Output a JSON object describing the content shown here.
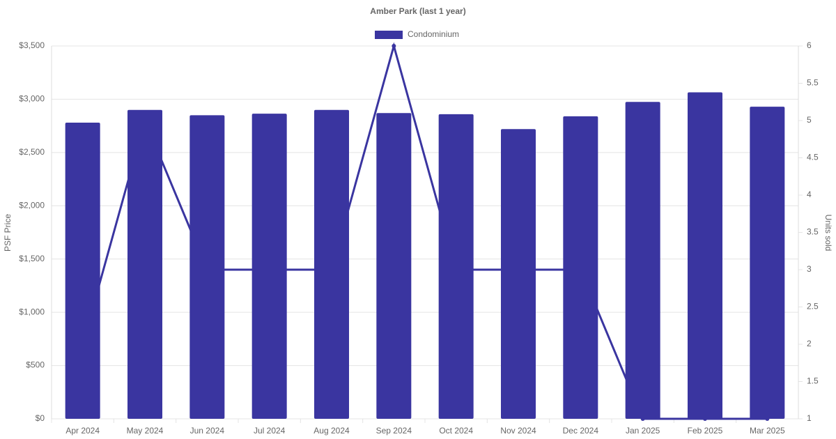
{
  "chart_data": {
    "type": "bar-line",
    "title": "Amber Park (last 1 year)",
    "categories": [
      "Apr 2024",
      "May 2024",
      "Jun 2024",
      "Jul 2024",
      "Aug 2024",
      "Sep 2024",
      "Oct 2024",
      "Nov 2024",
      "Dec 2024",
      "Jan 2025",
      "Feb 2025",
      "Mar 2025"
    ],
    "series": [
      {
        "name": "Condominium",
        "type": "bar",
        "color": "#3a35a0",
        "values": [
          2780,
          2900,
          2850,
          2865,
          2900,
          2870,
          2860,
          2720,
          2840,
          2975,
          3065,
          2930
        ]
      },
      {
        "type": "line",
        "axis": "y2",
        "color": "#3a35a0",
        "values": [
          2,
          5,
          3,
          3,
          3,
          6,
          3,
          3,
          3,
          1,
          1,
          1
        ]
      }
    ],
    "ylabel": "PSF Price",
    "y2label": "Units sold",
    "ylim": [
      0,
      3500
    ],
    "yticks": [
      {
        "value": 0,
        "label": "$0"
      },
      {
        "value": 500,
        "label": "$500"
      },
      {
        "value": 1000,
        "label": "$1,000"
      },
      {
        "value": 1500,
        "label": "$1,500"
      },
      {
        "value": 2000,
        "label": "$2,000"
      },
      {
        "value": 2500,
        "label": "$2,500"
      },
      {
        "value": 3000,
        "label": "$3,000"
      },
      {
        "value": 3500,
        "label": "$3,500"
      }
    ],
    "y2lim": [
      1,
      6
    ],
    "y2ticks": [
      1,
      1.5,
      2,
      2.5,
      3,
      3.5,
      4,
      4.5,
      5,
      5.5,
      6
    ],
    "grid": true,
    "legend": "top"
  }
}
